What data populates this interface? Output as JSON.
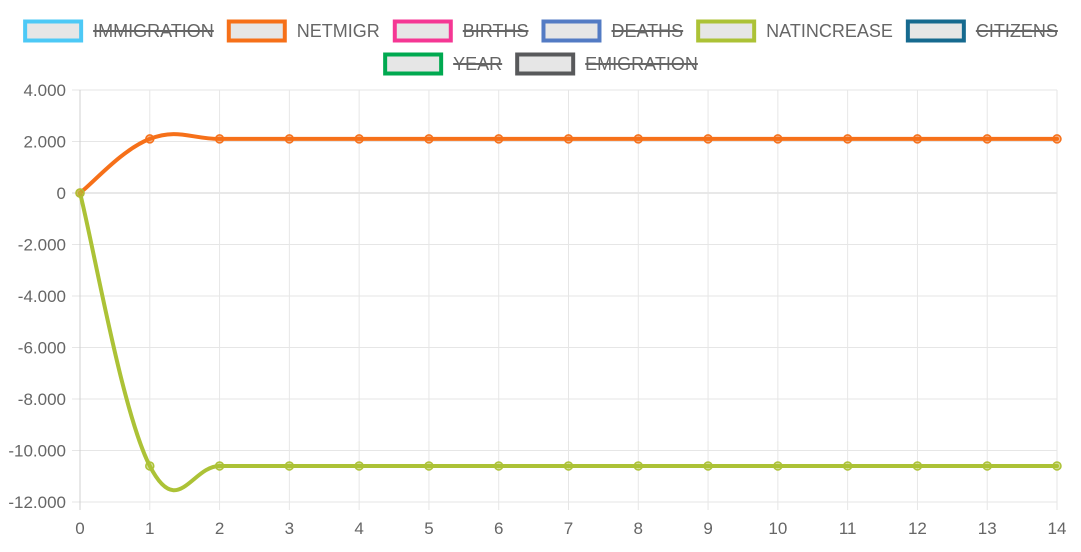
{
  "chart_data": {
    "type": "line",
    "x": [
      0,
      1,
      2,
      3,
      4,
      5,
      6,
      7,
      8,
      9,
      10,
      11,
      12,
      13,
      14
    ],
    "xlim": [
      0,
      14
    ],
    "ylim": [
      -12000,
      4000
    ],
    "y_ticks": [
      4000,
      2000,
      0,
      -2000,
      -4000,
      -6000,
      -8000,
      -10000,
      -12000
    ],
    "y_tick_labels": [
      "4.000",
      "2.000",
      "0",
      "-2.000",
      "-4.000",
      "-6.000",
      "-8.000",
      "-10.000",
      "-12.000"
    ],
    "x_tick_labels": [
      "0",
      "1",
      "2",
      "3",
      "4",
      "5",
      "6",
      "7",
      "8",
      "9",
      "10",
      "11",
      "12",
      "13",
      "14"
    ],
    "grid": true,
    "legend_position": "top",
    "legend": [
      {
        "name": "IMMIGRATION",
        "color": "#4dc9f6",
        "hidden": true
      },
      {
        "name": "NETMIGR",
        "color": "#f67019",
        "hidden": false
      },
      {
        "name": "BIRTHS",
        "color": "#f53794",
        "hidden": true
      },
      {
        "name": "DEATHS",
        "color": "#537bc4",
        "hidden": true
      },
      {
        "name": "NATINCREASE",
        "color": "#acc236",
        "hidden": false
      },
      {
        "name": "CITIZENS",
        "color": "#166a8f",
        "hidden": true
      },
      {
        "name": "YEAR",
        "color": "#00a950",
        "hidden": true
      },
      {
        "name": "EMIGRATION",
        "color": "#58595b",
        "hidden": true
      }
    ],
    "series": [
      {
        "name": "NETMIGR",
        "color": "#f67019",
        "values": [
          0,
          2100,
          2100,
          2100,
          2100,
          2100,
          2100,
          2100,
          2100,
          2100,
          2100,
          2100,
          2100,
          2100,
          2100
        ]
      },
      {
        "name": "NATINCREASE",
        "color": "#acc236",
        "values": [
          0,
          -10600,
          -10600,
          -10600,
          -10600,
          -10600,
          -10600,
          -10600,
          -10600,
          -10600,
          -10600,
          -10600,
          -10600,
          -10600,
          -10600
        ]
      }
    ]
  }
}
